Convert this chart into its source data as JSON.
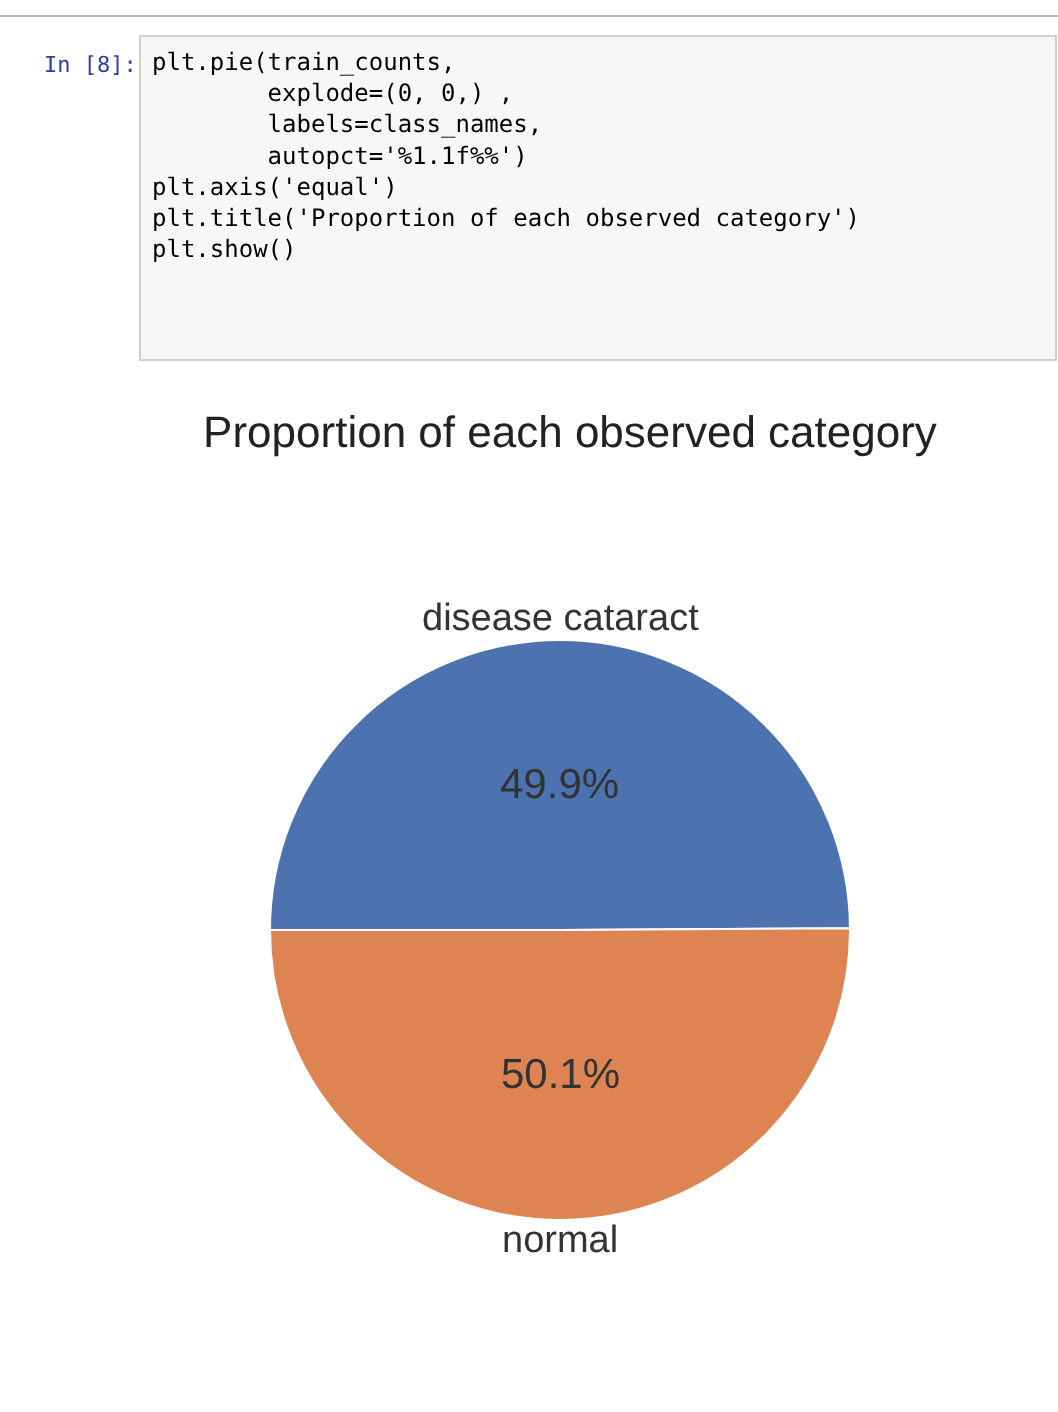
{
  "chart_data": {
    "type": "pie",
    "title": "Proportion of each observed category",
    "categories": [
      "disease cataract",
      "normal"
    ],
    "values": [
      49.9,
      50.1
    ],
    "colors": [
      "#4c72b0",
      "#dd8452"
    ],
    "value_labels": [
      "49.9%",
      "50.1%"
    ],
    "annotations": [
      "In [8]:",
      "plt.pie(train_counts,\n        explode=(0, 0,) ,\n        labels=class_names,\n        autopct='%1.1f%%')\nplt.axis('equal')\nplt.title('Proportion of each observed category')\nplt.show()"
    ]
  }
}
